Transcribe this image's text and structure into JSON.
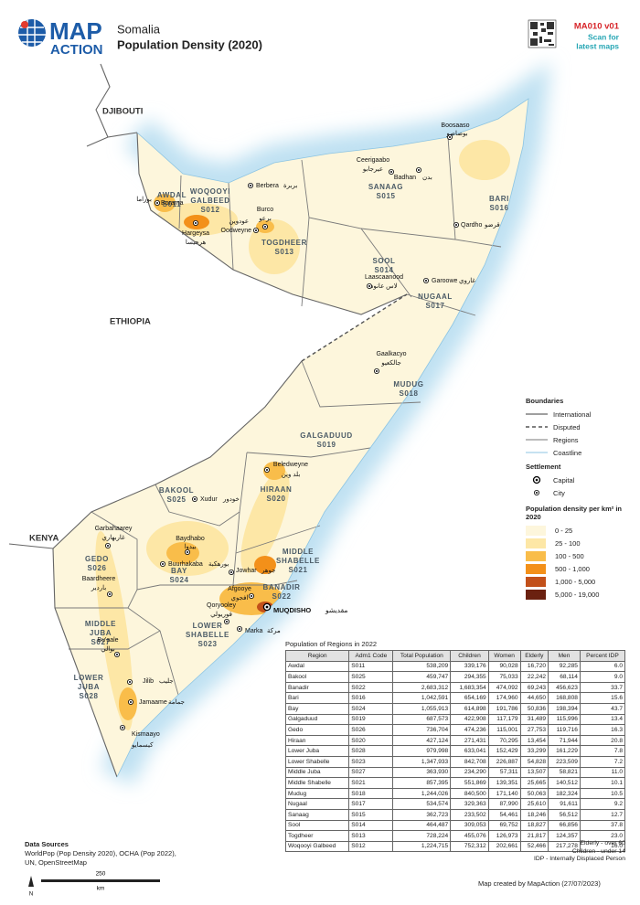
{
  "header": {
    "logo": [
      "MAP",
      "ACTION"
    ],
    "country": "Somalia",
    "title": "Population Density (2020)",
    "map_id": "MA010 v01",
    "scan": [
      "Scan for",
      "latest maps"
    ]
  },
  "map": {
    "countries": [
      "DJIBOUTI",
      "ETHIOPIA",
      "KENYA"
    ],
    "regions": [
      {
        "name": [
          "AWDAL"
        ],
        "code": "S011"
      },
      {
        "name": [
          "WOQOOYI",
          "GALBEED"
        ],
        "code": "S012"
      },
      {
        "name": [
          "TOGDHEER"
        ],
        "code": "S013"
      },
      {
        "name": [
          "SOOL"
        ],
        "code": "S014"
      },
      {
        "name": [
          "SANAAG"
        ],
        "code": "S015"
      },
      {
        "name": [
          "BARI"
        ],
        "code": "S016"
      },
      {
        "name": [
          "NUGAAL"
        ],
        "code": "S017"
      },
      {
        "name": [
          "MUDUG"
        ],
        "code": "S018"
      },
      {
        "name": [
          "GALGADUUD"
        ],
        "code": "S019"
      },
      {
        "name": [
          "HIRAAN"
        ],
        "code": "S020"
      },
      {
        "name": [
          "MIDDLE",
          "SHABELLE"
        ],
        "code": "S021"
      },
      {
        "name": [
          "BANADIR"
        ],
        "code": "S022"
      },
      {
        "name": [
          "LOWER",
          "SHABELLE"
        ],
        "code": "S023"
      },
      {
        "name": [
          "BAY"
        ],
        "code": "S024"
      },
      {
        "name": [
          "BAKOOL"
        ],
        "code": "S025"
      },
      {
        "name": [
          "GEDO"
        ],
        "code": "S026"
      },
      {
        "name": [
          "MIDDLE",
          "JUBA"
        ],
        "code": "S027"
      },
      {
        "name": [
          "LOWER",
          "JUBA"
        ],
        "code": "S028"
      }
    ],
    "cities": [
      {
        "name": "Berbera",
        "arabic": "بربرة"
      },
      {
        "name": "Borama",
        "arabic": "بوراما"
      },
      {
        "name": "Hargeysa",
        "arabic": "هرجيسا"
      },
      {
        "name": "Oodweyne",
        "arabic": "عودوين"
      },
      {
        "name": "Burco",
        "arabic": "برعو"
      },
      {
        "name": "Ceerigaabo",
        "arabic": "عيرجابو"
      },
      {
        "name": "Badhan",
        "arabic": "بدن"
      },
      {
        "name": "Boosaaso",
        "arabic": "بوصاصو"
      },
      {
        "name": "Qardho",
        "arabic": "قرضو"
      },
      {
        "name": "Laascaanood",
        "arabic": "لاس عانود"
      },
      {
        "name": "Garoowe",
        "arabic": "غاروي"
      },
      {
        "name": "Gaalkacyo",
        "arabic": "جالكعيو"
      },
      {
        "name": "Beledweyne",
        "arabic": "بلد وين"
      },
      {
        "name": "Xudur",
        "arabic": "خودور"
      },
      {
        "name": "Baydhabo",
        "arabic": "بيدوا"
      },
      {
        "name": "Buurhakaba",
        "arabic": "بورهكبة"
      },
      {
        "name": "Jowhar",
        "arabic": "جوهر"
      },
      {
        "name": "Afgooye",
        "arabic": "افجوي"
      },
      {
        "name": "Qoryooley",
        "arabic": "قوريولي"
      },
      {
        "name": "Marka",
        "arabic": "مركة"
      },
      {
        "name": "Garbahaarey",
        "arabic": "غاربهاري"
      },
      {
        "name": "Baardheere",
        "arabic": "باردير"
      },
      {
        "name": "Bu'aale",
        "arabic": "بوالي"
      },
      {
        "name": "Jilib",
        "arabic": "جليب"
      },
      {
        "name": "Jamaame",
        "arabic": "جمامة"
      },
      {
        "name": "Kismaayo",
        "arabic": "كيسمايو"
      }
    ],
    "capital": {
      "name": "MUQDISHO",
      "arabic": "مقديشو"
    }
  },
  "legend": {
    "boundaries": {
      "title": "Boundaries",
      "items": [
        "International",
        "Disputed",
        "Regions",
        "Coastline"
      ]
    },
    "settlement": {
      "title": "Settlement",
      "items": [
        "Capital",
        "City"
      ]
    },
    "density": {
      "title": "Population density per km² in 2020",
      "classes": [
        {
          "label": "0 - 25",
          "color": "#fdf6dc"
        },
        {
          "label": "25 - 100",
          "color": "#fde7a6"
        },
        {
          "label": "100 - 500",
          "color": "#f9bd4a"
        },
        {
          "label": "500 - 1,000",
          "color": "#f39019"
        },
        {
          "label": "1,000 - 5,000",
          "color": "#c2501a"
        },
        {
          "label": "5,000 - 19,000",
          "color": "#6b2110"
        }
      ]
    }
  },
  "table": {
    "title": "Population of Regions in 2022",
    "columns": [
      "Region",
      "Adm1 Code",
      "Total Population",
      "Children",
      "Women",
      "Elderly",
      "Men",
      "Percent IDP"
    ],
    "rows": [
      [
        "Awdal",
        "S011",
        "538,209",
        "339,176",
        "90,028",
        "16,720",
        "92,285",
        "6.0"
      ],
      [
        "Bakool",
        "S025",
        "459,747",
        "294,355",
        "75,033",
        "22,242",
        "68,114",
        "9.0"
      ],
      [
        "Banadir",
        "S022",
        "2,683,312",
        "1,683,354",
        "474,092",
        "69,243",
        "456,623",
        "33.7"
      ],
      [
        "Bari",
        "S016",
        "1,042,591",
        "654,169",
        "174,960",
        "44,650",
        "168,808",
        "15.6"
      ],
      [
        "Bay",
        "S024",
        "1,055,913",
        "614,898",
        "191,786",
        "50,836",
        "198,394",
        "43.7"
      ],
      [
        "Galgaduud",
        "S019",
        "687,573",
        "422,908",
        "117,179",
        "31,489",
        "115,996",
        "13.4"
      ],
      [
        "Gedo",
        "S026",
        "736,704",
        "474,236",
        "115,001",
        "27,753",
        "119,716",
        "16.3"
      ],
      [
        "Hiraan",
        "S020",
        "427,124",
        "271,431",
        "70,295",
        "13,454",
        "71,944",
        "20.8"
      ],
      [
        "Lower Juba",
        "S028",
        "979,998",
        "633,041",
        "152,429",
        "33,299",
        "161,229",
        "7.8"
      ],
      [
        "Lower Shabelle",
        "S023",
        "1,347,933",
        "842,708",
        "226,887",
        "54,828",
        "223,509",
        "7.2"
      ],
      [
        "Middle Juba",
        "S027",
        "363,930",
        "234,290",
        "57,311",
        "13,507",
        "58,821",
        "11.0"
      ],
      [
        "Middle Shabelle",
        "S021",
        "857,395",
        "551,869",
        "139,351",
        "25,665",
        "140,512",
        "10.1"
      ],
      [
        "Mudug",
        "S018",
        "1,244,026",
        "840,500",
        "171,140",
        "50,063",
        "182,324",
        "10.5"
      ],
      [
        "Nugaal",
        "S017",
        "534,574",
        "329,363",
        "87,990",
        "25,610",
        "91,611",
        "9.2"
      ],
      [
        "Sanaag",
        "S015",
        "362,723",
        "233,502",
        "54,461",
        "18,246",
        "56,512",
        "12.7"
      ],
      [
        "Sool",
        "S014",
        "464,487",
        "309,053",
        "69,752",
        "18,827",
        "66,856",
        "37.8"
      ],
      [
        "Togdheer",
        "S013",
        "728,224",
        "455,076",
        "126,973",
        "21,817",
        "124,357",
        "23.0"
      ],
      [
        "Woqooyi Galbeed",
        "S012",
        "1,224,715",
        "752,312",
        "202,661",
        "52,466",
        "217,278",
        "16.0"
      ]
    ]
  },
  "notes": [
    "Elderly - over 60",
    "Children - under 14",
    "IDP - Internally Displaced Person"
  ],
  "sources": {
    "title": "Data Sources",
    "lines": [
      "WorldPop (Pop Density 2020), OCHA (Pop 2022),",
      "UN, OpenStreetMap"
    ]
  },
  "scale": {
    "label": "250",
    "unit": "km",
    "north": "N"
  },
  "credit": "Map created by MapAction (27/07/2023)"
}
